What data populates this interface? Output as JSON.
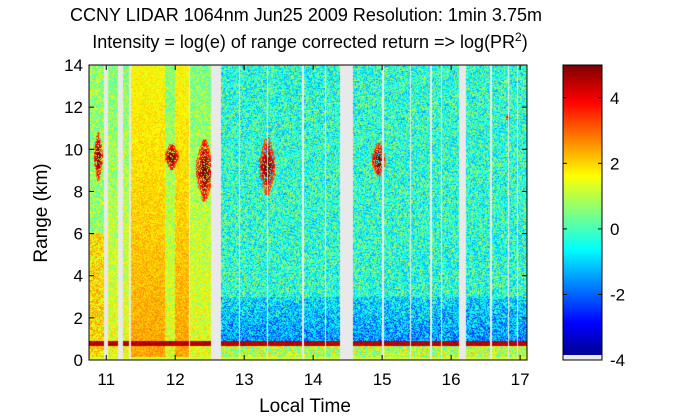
{
  "chart_data": {
    "type": "heatmap",
    "title": "CCNY LIDAR 1064nm Jun25 2009 Resolution: 1min 3.75m",
    "subtitle_main": "Intensity = log(e) of range corrected return => log(PR",
    "subtitle_sup": "2",
    "subtitle_end": ")",
    "xlabel": "Local Time",
    "ylabel": "Range (km)",
    "xlim": [
      10.75,
      17.1
    ],
    "ylim": [
      0,
      14
    ],
    "xticks": [
      "11",
      "12",
      "13",
      "14",
      "15",
      "16",
      "17"
    ],
    "xtick_values": [
      11,
      12,
      13,
      14,
      15,
      16,
      17
    ],
    "yticks": [
      "0",
      "2",
      "4",
      "6",
      "8",
      "10",
      "12",
      "14"
    ],
    "ytick_values": [
      0,
      2,
      4,
      6,
      8,
      10,
      12,
      14
    ],
    "colorbar": {
      "range": [
        -4,
        5
      ],
      "ticks": [
        "-4",
        "-2",
        "0",
        "2",
        "4"
      ],
      "tick_values": [
        -4,
        -2,
        0,
        2,
        4
      ],
      "colormap": "jet"
    },
    "data_gaps_hours": [
      [
        10.97,
        11.02
      ],
      [
        11.17,
        11.24
      ],
      [
        11.33,
        11.36
      ],
      [
        12.2,
        12.22
      ],
      [
        12.28,
        12.29
      ],
      [
        12.52,
        12.66
      ],
      [
        12.92,
        12.94
      ],
      [
        13.33,
        13.35
      ],
      [
        13.84,
        13.86
      ],
      [
        14.17,
        14.18
      ],
      [
        14.39,
        14.58
      ],
      [
        15.0,
        15.02
      ],
      [
        15.4,
        15.42
      ],
      [
        15.7,
        15.72
      ],
      [
        15.86,
        15.87
      ],
      [
        16.12,
        16.22
      ],
      [
        16.57,
        16.59
      ],
      [
        16.82,
        16.84
      ],
      [
        16.95,
        16.97
      ]
    ],
    "boundary_layer_km": 0.8,
    "cloud_layers": [
      {
        "t_start": 10.82,
        "t_end": 10.95,
        "base_km": 8.5,
        "top_km": 10.8
      },
      {
        "t_start": 11.85,
        "t_end": 12.05,
        "base_km": 9.0,
        "top_km": 10.3
      },
      {
        "t_start": 12.3,
        "t_end": 12.55,
        "base_km": 7.5,
        "top_km": 10.5
      },
      {
        "t_start": 13.22,
        "t_end": 13.45,
        "base_km": 7.8,
        "top_km": 10.6
      },
      {
        "t_start": 14.85,
        "t_end": 15.05,
        "base_km": 8.7,
        "top_km": 10.3
      },
      {
        "t_start": 16.8,
        "t_end": 16.85,
        "base_km": 11.3,
        "top_km": 11.7
      }
    ],
    "high_signal_intervals_hours": [
      [
        11.36,
        11.85
      ],
      [
        12.0,
        12.2
      ]
    ],
    "grid": false
  }
}
